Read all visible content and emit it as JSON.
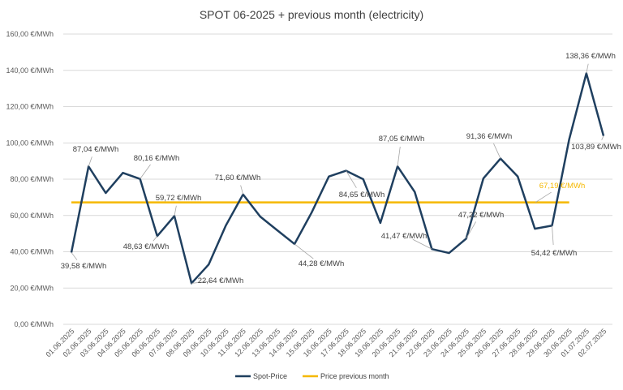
{
  "chart_data": {
    "type": "line",
    "title": "SPOT 06-2025 + previous month (electricity)",
    "xlabel": "",
    "ylabel": "",
    "ylim": [
      0,
      160
    ],
    "y_ticks": [
      "0,00 €/MWh",
      "20,00 €/MWh",
      "40,00 €/MWh",
      "60,00 €/MWh",
      "80,00 €/MWh",
      "100,00 €/MWh",
      "120,00 €/MWh",
      "140,00 €/MWh",
      "160,00 €/MWh"
    ],
    "grid": true,
    "legend_position": "bottom",
    "categories": [
      "01.06.2025",
      "02.06.2025",
      "03.06.2025",
      "04.06.2025",
      "05.06.2025",
      "06.06.2025",
      "07.06.2025",
      "08.06.2025",
      "09.06.2025",
      "10.06.2025",
      "11.06.2025",
      "12.06.2025",
      "13.06.2025",
      "14.06.2025",
      "15.06.2025",
      "16.06.2025",
      "17.06.2025",
      "18.06.2025",
      "19.06.2025",
      "20.06.2025",
      "21.06.2025",
      "22.06.2025",
      "23.06.2025",
      "24.06.2025",
      "25.06.2025",
      "26.06.2025",
      "27.06.2025",
      "28.06.2025",
      "29.06.2025",
      "30.06.2025",
      "01.07.2025",
      "02.07.2025"
    ],
    "series": [
      {
        "name": "Spot-Price",
        "color": "#1f3f5f",
        "values": [
          39.58,
          87.04,
          72.4,
          83.5,
          80.16,
          48.63,
          59.72,
          22.64,
          33.0,
          54.5,
          71.6,
          59.4,
          51.8,
          44.28,
          61.7,
          81.5,
          84.65,
          80.0,
          55.9,
          87.05,
          73.0,
          41.47,
          39.3,
          47.22,
          80.4,
          91.36,
          81.5,
          52.7,
          54.42,
          102.0,
          138.36,
          103.89
        ],
        "data_labels": [
          {
            "index": 0,
            "text": "39,58 €/MWh"
          },
          {
            "index": 1,
            "text": "87,04 €/MWh"
          },
          {
            "index": 4,
            "text": "80,16 €/MWh"
          },
          {
            "index": 5,
            "text": "48,63 €/MWh"
          },
          {
            "index": 6,
            "text": "59,72 €/MWh"
          },
          {
            "index": 7,
            "text": "22,64 €/MWh"
          },
          {
            "index": 10,
            "text": "71,60 €/MWh"
          },
          {
            "index": 13,
            "text": "44,28 €/MWh"
          },
          {
            "index": 16,
            "text": "84,65 €/MWh"
          },
          {
            "index": 19,
            "text": "87,05 €/MWh"
          },
          {
            "index": 21,
            "text": "41,47 €/MWh"
          },
          {
            "index": 23,
            "text": "47,22 €/MWh"
          },
          {
            "index": 25,
            "text": "91,36 €/MWh"
          },
          {
            "index": 28,
            "text": "54,42 €/MWh"
          },
          {
            "index": 30,
            "text": "138,36 €/MWh"
          },
          {
            "index": 31,
            "text": "103,89 €/MWh"
          }
        ]
      },
      {
        "name": "Price previous month",
        "color": "#f5b800",
        "value": 67.19,
        "range": [
          "01.06.2025",
          "30.06.2025"
        ],
        "data_label": "67,19 €/MWh"
      }
    ]
  }
}
